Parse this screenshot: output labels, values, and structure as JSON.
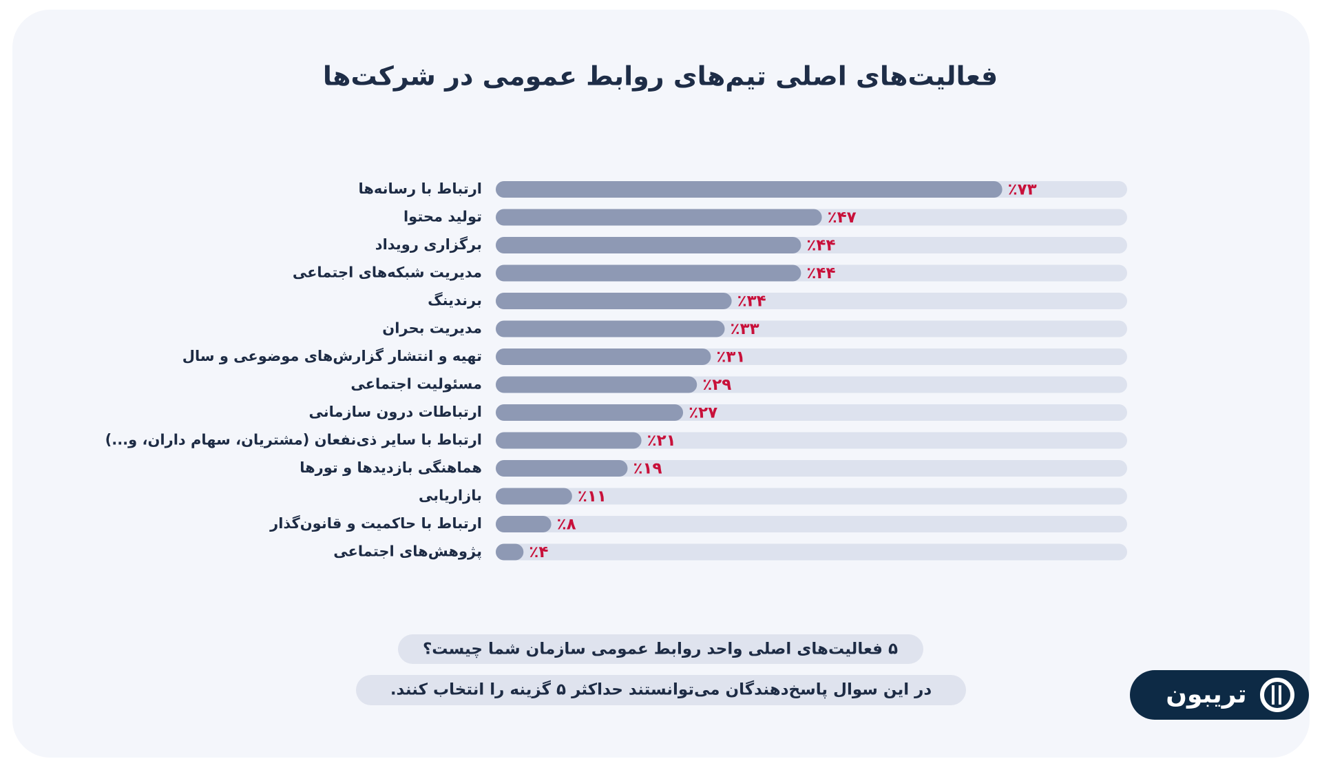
{
  "chart_data": {
    "type": "bar",
    "orientation": "horizontal",
    "title": "فعالیت‌های اصلی تیم‌های روابط عمومی در شرکت‌ها",
    "categories": [
      "ارتباط با رسانه‌ها",
      "تولید محتوا",
      "برگزاری رویداد",
      "مدیریت شبکه‌های اجتماعی",
      "برندینگ",
      "مدیریت بحران",
      "تهیه و انتشار گزارش‌های موضوعی و سال",
      "مسئولیت اجتماعی",
      "ارتباطات درون سازمانی",
      "ارتباط با سایر ذی‌نفعان (مشتریان، سهام داران، و...)",
      "هماهنگی بازدیدها و تورها",
      "بازاریابی",
      "ارتباط با حاکمیت و قانون‌گذار",
      "پژوهش‌های اجتماعی"
    ],
    "values": [
      73,
      47,
      44,
      44,
      34,
      33,
      31,
      29,
      27,
      21,
      19,
      11,
      8,
      4
    ],
    "value_labels": [
      "٪۷۳",
      "٪۴۷",
      "٪۴۴",
      "٪۴۴",
      "٪۳۴",
      "٪۳۳",
      "٪۳۱",
      "٪۲۹",
      "٪۲۷",
      "٪۲۱",
      "٪۱۹",
      "٪۱۱",
      "٪۸",
      "٪۴"
    ],
    "color": "#8e99b4",
    "track_color": "#dde2ee",
    "label_color": "#c8103a",
    "xlim": [
      0,
      91
    ]
  },
  "notes": [
    "۵ فعالیت‌های اصلی واحد روابط عمومی سازمان شما چیست؟",
    "در این سوال پاسخ‌دهندگان می‌توانستند حداکثر ۵ گزینه را انتخاب کنند."
  ],
  "logo": "تریبون"
}
